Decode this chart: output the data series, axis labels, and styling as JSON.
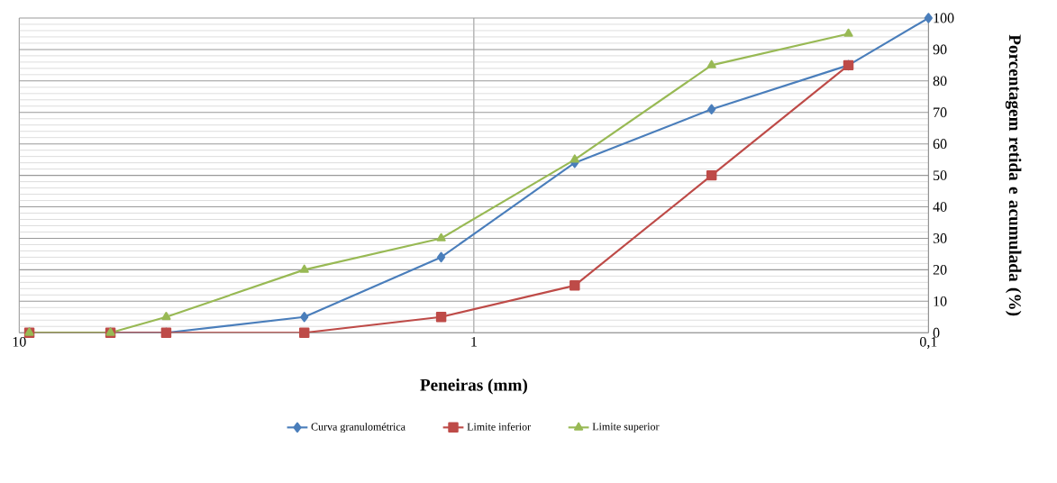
{
  "chart_data": {
    "type": "line",
    "xlabel": "Peneiras (mm)",
    "ylabel": "Porcentagem retida e acumulada (%)",
    "log": "x",
    "xlim": [
      10,
      0.1
    ],
    "xticks": [
      10,
      1,
      {
        "value": 0.1,
        "label": "0,1"
      }
    ],
    "ylim": [
      0,
      100
    ],
    "yticks": [
      0,
      10,
      20,
      30,
      40,
      50,
      60,
      70,
      80,
      90,
      100
    ],
    "grid": true,
    "legend": "bottom",
    "series": [
      {
        "name": "Curva granulométrica",
        "color": "#4a7ebb",
        "marker": "diamond",
        "x": [
          9.5,
          6.3,
          4.75,
          2.36,
          1.18,
          0.6,
          0.3,
          0.15,
          0.1
        ],
        "values": [
          0,
          0,
          0,
          5,
          24,
          54,
          71,
          85,
          100
        ]
      },
      {
        "name": "Limite inferior",
        "color": "#be4b48",
        "marker": "square",
        "x": [
          9.5,
          6.3,
          4.75,
          2.36,
          1.18,
          0.6,
          0.3,
          0.15
        ],
        "values": [
          0,
          0,
          0,
          0,
          5,
          15,
          50,
          85
        ]
      },
      {
        "name": "Limite superior",
        "color": "#98b954",
        "marker": "triangle",
        "x": [
          9.5,
          6.3,
          4.75,
          2.36,
          1.18,
          0.6,
          0.3,
          0.15
        ],
        "values": [
          0,
          0,
          5,
          20,
          30,
          55,
          85,
          95
        ]
      }
    ]
  }
}
